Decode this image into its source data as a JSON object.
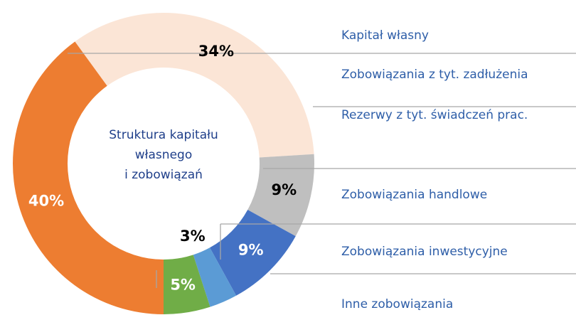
{
  "chart_data": {
    "type": "donut",
    "title": [
      "Struktura kapitału",
      "własnego",
      "i zobowiązań"
    ],
    "categories": [
      "Kapitał własny",
      "Zobowiązania z tyt. zadłużenia",
      "Rezerwy z tyt. świadczeń prac.",
      "Zobowiązania handlowe",
      "Zobowiązania inwestycyjne",
      "Inne zobowiązania"
    ],
    "values": [
      34,
      9,
      9,
      3,
      5,
      40
    ],
    "value_labels": [
      "34%",
      "9%",
      "9%",
      "3%",
      "5%",
      "40%"
    ],
    "colors": [
      "#fbe5d6",
      "#bfbfbf",
      "#4472c4",
      "#5b9bd5",
      "#70ad47",
      "#ed7d31"
    ]
  }
}
